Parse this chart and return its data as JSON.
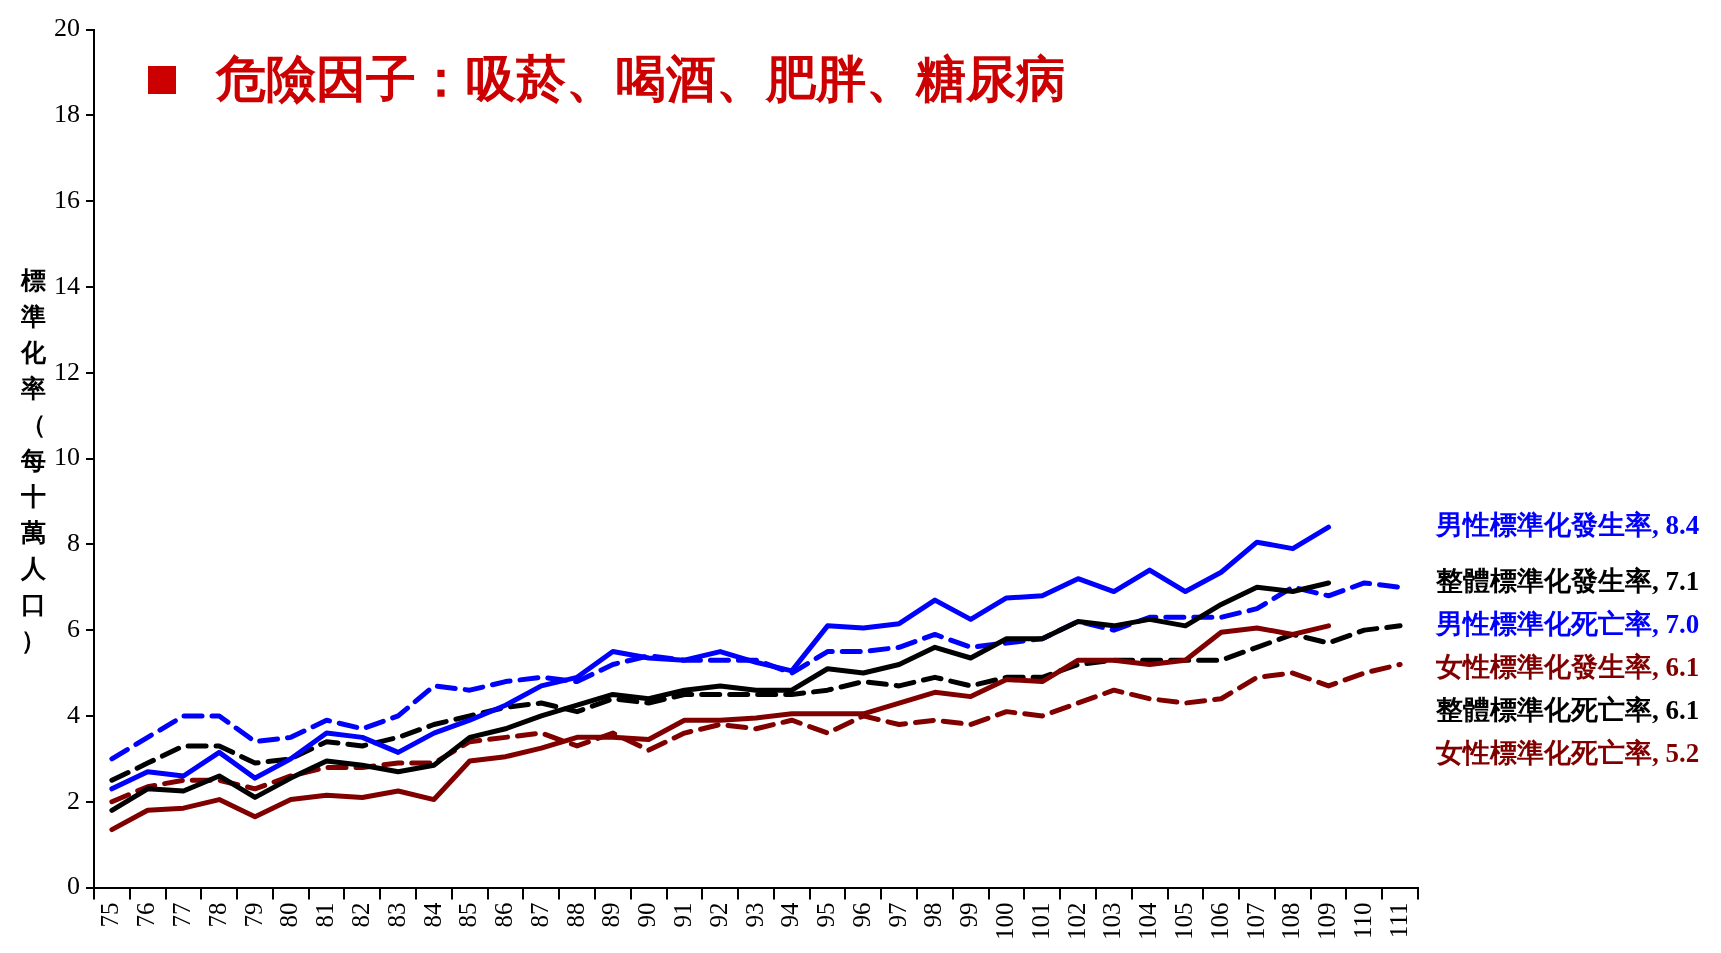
{
  "chart_data": {
    "type": "line",
    "subtitle": "危險因子：吸菸、喝酒、肥胖、糖尿病",
    "ylabel": "標準化率（每十萬人口）",
    "categories": [
      "75",
      "76",
      "77",
      "78",
      "79",
      "80",
      "81",
      "82",
      "83",
      "84",
      "85",
      "86",
      "87",
      "88",
      "89",
      "90",
      "91",
      "92",
      "93",
      "94",
      "95",
      "96",
      "97",
      "98",
      "99",
      "100",
      "101",
      "102",
      "103",
      "104",
      "105",
      "106",
      "107",
      "108",
      "109",
      "110",
      "111"
    ],
    "ylim": [
      0,
      20
    ],
    "yticks": [
      0,
      2,
      4,
      6,
      8,
      10,
      12,
      14,
      16,
      18,
      20
    ],
    "grid": false,
    "legend": false,
    "marker": "none",
    "series": [
      {
        "name": "男性標準化發生率, 8.4",
        "color": "#0000ff",
        "line_style": "solid",
        "values": [
          2.3,
          2.7,
          2.6,
          3.15,
          2.55,
          3.0,
          3.6,
          3.5,
          3.15,
          3.6,
          3.9,
          4.25,
          4.7,
          4.9,
          5.5,
          5.35,
          5.3,
          5.5,
          5.25,
          5.05,
          6.1,
          6.05,
          6.15,
          6.7,
          6.25,
          6.75,
          6.8,
          7.2,
          6.9,
          7.4,
          6.9,
          7.35,
          8.05,
          7.9,
          8.4,
          null,
          null
        ]
      },
      {
        "name": "整體標準化發生率, 7.1",
        "color": "#000000",
        "line_style": "solid",
        "values": [
          1.8,
          2.3,
          2.25,
          2.6,
          2.1,
          2.55,
          2.95,
          2.85,
          2.7,
          2.85,
          3.5,
          3.7,
          4.0,
          4.25,
          4.5,
          4.4,
          4.6,
          4.7,
          4.6,
          4.6,
          5.1,
          5.0,
          5.2,
          5.6,
          5.35,
          5.8,
          5.8,
          6.2,
          6.1,
          6.25,
          6.1,
          6.6,
          7.0,
          6.9,
          7.1,
          null,
          null
        ]
      },
      {
        "name": "男性標準化死亡率, 7.0",
        "color": "#0000ff",
        "line_style": "dashed",
        "values": [
          3.0,
          3.5,
          4.0,
          4.0,
          3.4,
          3.5,
          3.9,
          3.7,
          4.0,
          4.7,
          4.6,
          4.8,
          4.9,
          4.8,
          5.2,
          5.4,
          5.3,
          5.3,
          5.3,
          5.0,
          5.5,
          5.5,
          5.6,
          5.9,
          5.6,
          5.7,
          5.8,
          6.2,
          6.0,
          6.3,
          6.3,
          6.3,
          6.5,
          7.0,
          6.8,
          7.1,
          7.0
        ]
      },
      {
        "name": "女性標準化發生率, 6.1",
        "color": "#800000",
        "line_style": "solid",
        "values": [
          1.35,
          1.8,
          1.85,
          2.05,
          1.65,
          2.05,
          2.15,
          2.1,
          2.25,
          2.05,
          2.95,
          3.05,
          3.25,
          3.5,
          3.5,
          3.45,
          3.9,
          3.9,
          3.95,
          4.05,
          4.05,
          4.05,
          4.3,
          4.55,
          4.45,
          4.85,
          4.8,
          5.3,
          5.3,
          5.2,
          5.3,
          5.95,
          6.05,
          5.9,
          6.1,
          null,
          null
        ]
      },
      {
        "name": "整體標準化死亡率, 6.1",
        "color": "#000000",
        "line_style": "dashed",
        "values": [
          2.5,
          2.9,
          3.3,
          3.3,
          2.9,
          3.0,
          3.4,
          3.3,
          3.5,
          3.8,
          4.0,
          4.2,
          4.3,
          4.1,
          4.4,
          4.3,
          4.5,
          4.5,
          4.5,
          4.5,
          4.6,
          4.8,
          4.7,
          4.9,
          4.7,
          4.9,
          4.9,
          5.2,
          5.3,
          5.3,
          5.3,
          5.3,
          5.6,
          5.9,
          5.7,
          6.0,
          6.1
        ]
      },
      {
        "name": "女性標準化死亡率, 5.2",
        "color": "#800000",
        "line_style": "dashed",
        "values": [
          2.0,
          2.35,
          2.5,
          2.5,
          2.3,
          2.6,
          2.8,
          2.8,
          2.9,
          2.9,
          3.4,
          3.5,
          3.6,
          3.3,
          3.6,
          3.2,
          3.6,
          3.8,
          3.7,
          3.9,
          3.6,
          4.0,
          3.8,
          3.9,
          3.8,
          4.1,
          4.0,
          4.3,
          4.6,
          4.4,
          4.3,
          4.4,
          4.9,
          5.0,
          4.7,
          5.0,
          5.2
        ]
      }
    ]
  }
}
